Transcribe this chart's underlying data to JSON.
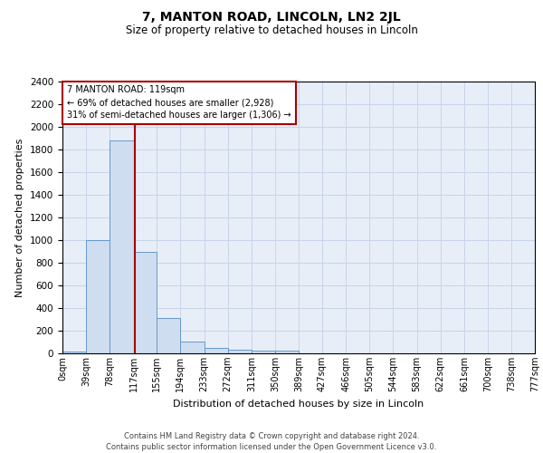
{
  "title": "7, MANTON ROAD, LINCOLN, LN2 2JL",
  "subtitle": "Size of property relative to detached houses in Lincoln",
  "xlabel": "Distribution of detached houses by size in Lincoln",
  "ylabel": "Number of detached properties",
  "bin_edges": [
    0,
    39,
    78,
    117,
    155,
    194,
    233,
    272,
    311,
    350,
    389,
    427,
    466,
    505,
    544,
    583,
    622,
    661,
    700,
    738,
    777
  ],
  "bar_heights": [
    20,
    1000,
    1880,
    900,
    310,
    105,
    50,
    35,
    25,
    25,
    0,
    0,
    0,
    0,
    0,
    0,
    0,
    0,
    0,
    0
  ],
  "bar_color": "#cfddf0",
  "bar_edge_color": "#6699cc",
  "vline_x": 119,
  "vline_color": "#aa0000",
  "ylim": [
    0,
    2400
  ],
  "yticks": [
    0,
    200,
    400,
    600,
    800,
    1000,
    1200,
    1400,
    1600,
    1800,
    2000,
    2200,
    2400
  ],
  "annotation_text": "7 MANTON ROAD: 119sqm\n← 69% of detached houses are smaller (2,928)\n31% of semi-detached houses are larger (1,306) →",
  "annotation_box_color": "#ffffff",
  "annotation_box_edge_color": "#aa0000",
  "grid_color": "#c8d4e8",
  "background_color": "#e8eef8",
  "footer_text": "Contains HM Land Registry data © Crown copyright and database right 2024.\nContains public sector information licensed under the Open Government Licence v3.0.",
  "tick_labels": [
    "0sqm",
    "39sqm",
    "78sqm",
    "117sqm",
    "155sqm",
    "194sqm",
    "233sqm",
    "272sqm",
    "311sqm",
    "350sqm",
    "389sqm",
    "427sqm",
    "466sqm",
    "505sqm",
    "544sqm",
    "583sqm",
    "622sqm",
    "661sqm",
    "700sqm",
    "738sqm",
    "777sqm"
  ]
}
